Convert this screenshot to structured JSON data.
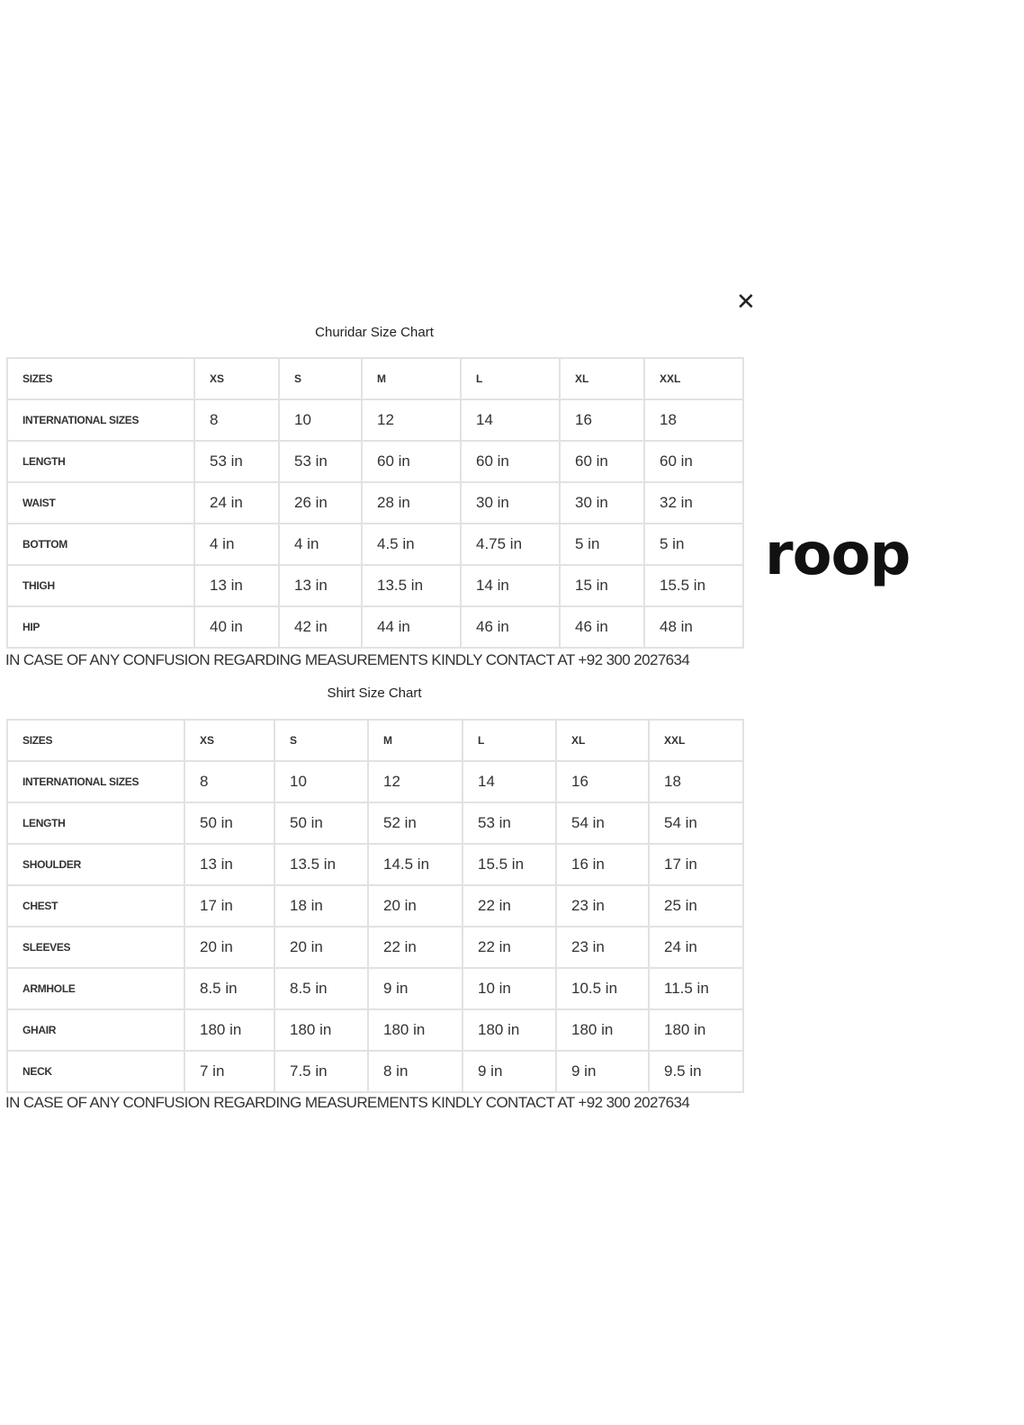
{
  "close_icon": "close-icon",
  "brand": "roop",
  "churidar": {
    "title": "Churidar Size Chart",
    "header": [
      "SIZES",
      "XS",
      "S",
      "M",
      "L",
      "XL",
      "XXL"
    ],
    "rows": [
      [
        "INTERNATIONAL SIZES",
        "8",
        "10",
        "12",
        "14",
        "16",
        "18"
      ],
      [
        "LENGTH",
        "53 in",
        "53 in",
        "60 in",
        "60 in",
        "60 in",
        "60 in"
      ],
      [
        "WAIST",
        "24 in",
        "26 in",
        "28 in",
        "30 in",
        "30 in",
        "32 in"
      ],
      [
        "BOTTOM",
        "4 in",
        "4 in",
        "4.5 in",
        "4.75 in",
        "5 in",
        "5 in"
      ],
      [
        "THIGH",
        "13 in",
        "13 in",
        "13.5 in",
        "14 in",
        "15 in",
        "15.5 in"
      ],
      [
        "HIP",
        "40 in",
        "42 in",
        "44 in",
        "46 in",
        "46 in",
        "48 in"
      ]
    ],
    "note": "IN CASE OF ANY CONFUSION REGARDING MEASUREMENTS KINDLY CONTACT AT +92 300 2027634"
  },
  "shirt": {
    "title": "Shirt Size Chart",
    "header": [
      "SIZES",
      "XS",
      "S",
      "M",
      "L",
      "XL",
      "XXL"
    ],
    "rows": [
      [
        "INTERNATIONAL SIZES",
        "8",
        "10",
        "12",
        "14",
        "16",
        "18"
      ],
      [
        "LENGTH",
        "50 in",
        "50 in",
        "52 in",
        "53 in",
        "54 in",
        "54 in"
      ],
      [
        "SHOULDER",
        "13 in",
        "13.5 in",
        "14.5 in",
        "15.5 in",
        "16 in",
        "17 in"
      ],
      [
        "CHEST",
        "17 in",
        "18 in",
        "20 in",
        "22 in",
        "23 in",
        "25 in"
      ],
      [
        "SLEEVES",
        "20 in",
        "20 in",
        "22 in",
        "22 in",
        "23 in",
        "24 in"
      ],
      [
        "ARMHOLE",
        "8.5 in",
        "8.5 in",
        "9 in",
        "10 in",
        "10.5 in",
        "11.5 in"
      ],
      [
        "GHAIR",
        "180 in",
        "180 in",
        "180 in",
        "180 in",
        "180 in",
        "180 in"
      ],
      [
        "NECK",
        "7 in",
        "7.5 in",
        "8 in",
        "9 in",
        "9 in",
        "9.5 in"
      ]
    ],
    "note": "IN CASE OF ANY CONFUSION REGARDING MEASUREMENTS KINDLY CONTACT AT +92 300 2027634"
  }
}
